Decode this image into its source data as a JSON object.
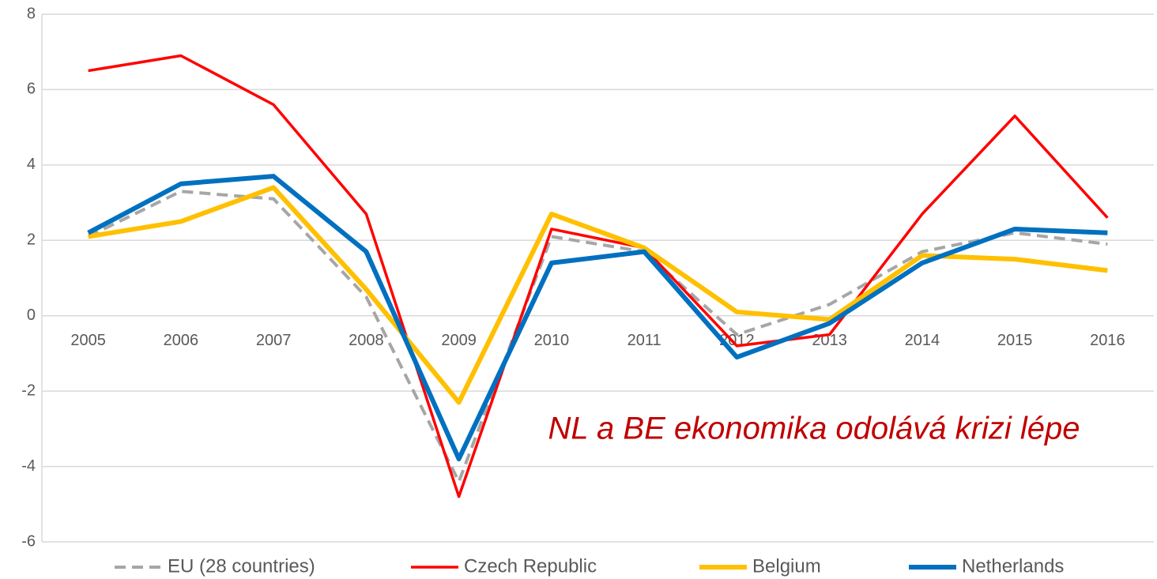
{
  "chart_data": {
    "type": "line",
    "categories": [
      "2005",
      "2006",
      "2007",
      "2008",
      "2009",
      "2010",
      "2011",
      "2012",
      "2013",
      "2014",
      "2015",
      "2016"
    ],
    "series": [
      {
        "name": "EU (28 countries)",
        "color": "#a6a6a6",
        "dash": true,
        "values": [
          2.1,
          3.3,
          3.1,
          0.5,
          -4.4,
          2.1,
          1.7,
          -0.5,
          0.3,
          1.7,
          2.2,
          1.9
        ]
      },
      {
        "name": "Czech Republic",
        "color": "#ff0000",
        "dash": false,
        "values": [
          6.5,
          6.9,
          5.6,
          2.7,
          -4.8,
          2.3,
          1.8,
          -0.8,
          -0.5,
          2.7,
          5.3,
          2.6
        ]
      },
      {
        "name": "Belgium",
        "color": "#ffc000",
        "dash": false,
        "values": [
          2.1,
          2.5,
          3.4,
          0.7,
          -2.3,
          2.7,
          1.8,
          0.1,
          -0.1,
          1.6,
          1.5,
          1.2
        ]
      },
      {
        "name": "Netherlands",
        "color": "#0070c0",
        "dash": false,
        "values": [
          2.2,
          3.5,
          3.7,
          1.7,
          -3.8,
          1.4,
          1.7,
          -1.1,
          -0.2,
          1.4,
          2.3,
          2.2
        ]
      }
    ],
    "ylim": [
      -6,
      8
    ],
    "yticks": [
      -6,
      -4,
      -2,
      0,
      2,
      4,
      6,
      8
    ],
    "grid": true,
    "annotation": "NL a BE ekonomika odolává krizi lépe",
    "annotation_color": "#c00000",
    "legend": "bottom"
  }
}
